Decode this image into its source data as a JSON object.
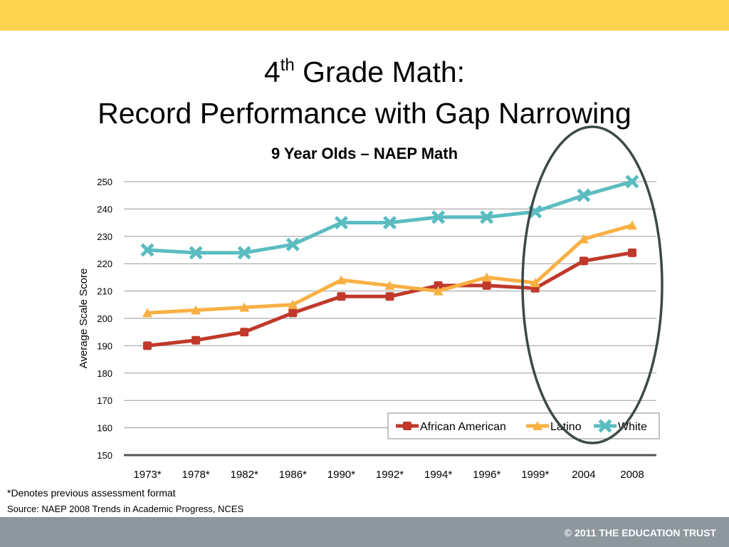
{
  "colors": {
    "top_bar": "#fcd34f",
    "footer_bar": "#8c979e",
    "ellipse": "#3c4a48",
    "gridline": "#9a9a9a",
    "axis": "#555555"
  },
  "slide": {
    "title_number": "4",
    "title_superscript": "th",
    "title_line1_rest": " Grade Math:",
    "title_line2": "Record Performance with Gap Narrowing"
  },
  "chart_data": {
    "type": "line",
    "title": "9 Year Olds – NAEP Math",
    "xlabel": "",
    "ylabel": "Average Scale Score",
    "categories": [
      "1973*",
      "1978*",
      "1982*",
      "1986*",
      "1990*",
      "1992*",
      "1994*",
      "1996*",
      "1999*",
      "2004",
      "2008"
    ],
    "ylim": [
      150,
      250
    ],
    "yticks": [
      150,
      160,
      170,
      180,
      190,
      200,
      210,
      220,
      230,
      240,
      250
    ],
    "grid": true,
    "legend_position": "bottom-right",
    "series": [
      {
        "name": "African American",
        "color": "#c0392b",
        "marker": "square",
        "values": [
          190,
          192,
          195,
          202,
          208,
          208,
          212,
          212,
          211,
          221,
          224
        ]
      },
      {
        "name": "Latino",
        "color": "#f9b043",
        "marker": "triangle",
        "values": [
          202,
          203,
          204,
          205,
          214,
          212,
          210,
          215,
          213,
          229,
          234
        ]
      },
      {
        "name": "White",
        "color": "#5bbcc0",
        "marker": "x",
        "values": [
          225,
          224,
          224,
          227,
          235,
          235,
          237,
          237,
          239,
          245,
          250
        ]
      }
    ]
  },
  "footnotes": {
    "assessment_note": "*Denotes previous assessment format",
    "source": "Source: NAEP 2008 Trends in Academic Progress, NCES"
  },
  "footer": {
    "copyright": "© 2011 THE EDUCATION TRUST"
  }
}
